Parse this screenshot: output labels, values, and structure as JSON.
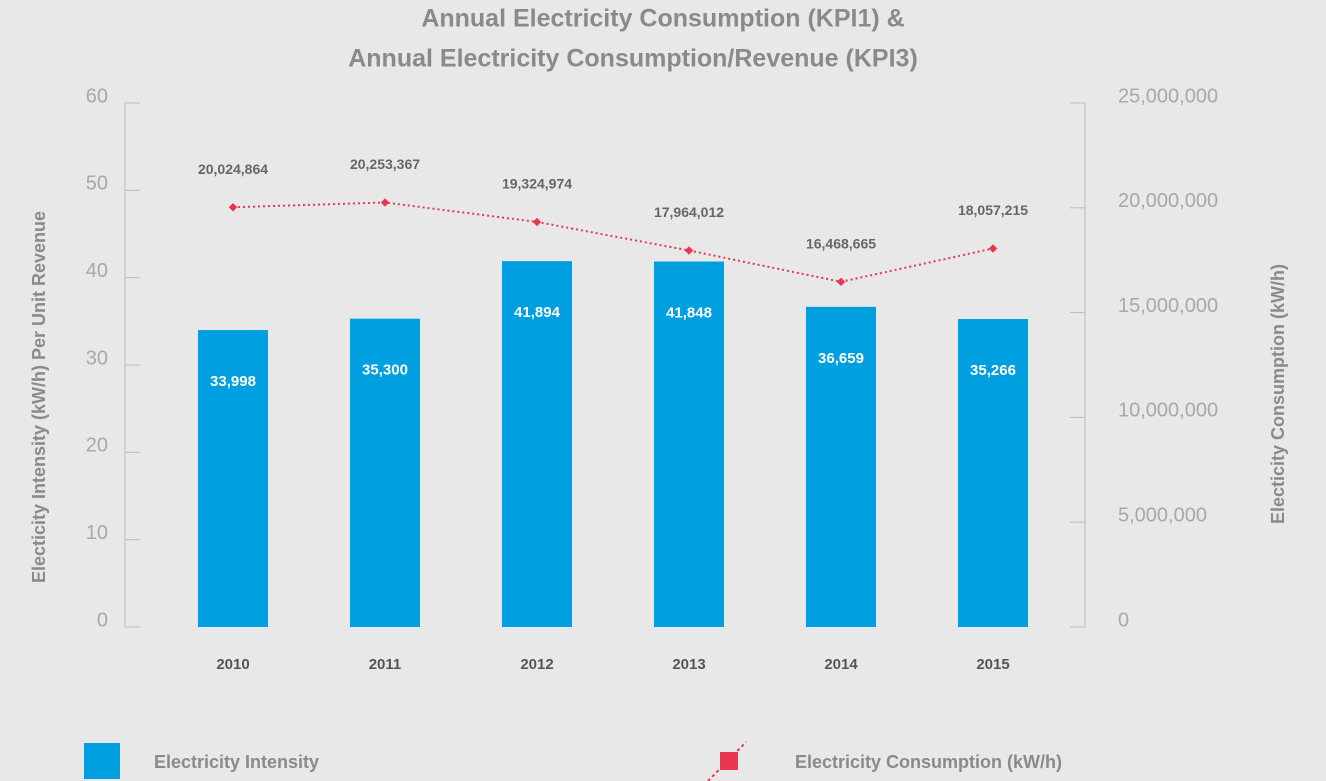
{
  "chart_data": {
    "type": "combo",
    "title": [
      "Annual Electricity Consumption (KPI1) &",
      "Annual Electricity Consumption/Revenue (KPI3)"
    ],
    "y_label": "Electicity Intensity (kW/h) Per Unit Revenue",
    "y2_label": "Electicity Consumption (kW/h)",
    "categories": [
      "2010",
      "2011",
      "2012",
      "2013",
      "2014",
      "2015"
    ],
    "ylim": [
      0,
      60
    ],
    "yticks": [
      0,
      10,
      20,
      30,
      40,
      50,
      60
    ],
    "y2lim": [
      0,
      25000000
    ],
    "y2ticks": [
      0,
      {
        "value": 5000000,
        "label": "5,000,000"
      },
      {
        "value": 10000000,
        "label": "10,000,000"
      },
      {
        "value": 15000000,
        "label": "15,000,000"
      },
      {
        "value": 20000000,
        "label": "20,000,000"
      },
      {
        "value": 25000000,
        "label": "25,000,000"
      }
    ],
    "series": [
      {
        "name": "Electricity Intensity",
        "type": "bar",
        "color": "#009fe0",
        "values": [
          33.998,
          35.3,
          41.894,
          41.848,
          36.659,
          35.266
        ],
        "value_labels": [
          "33,998",
          "35,300",
          "41,894",
          "41,848",
          "36,659",
          "35,266"
        ]
      },
      {
        "name": "Electricity Consumption (kW/h)",
        "type": "line",
        "axis": "y2",
        "color": "#e8384f",
        "values": [
          20024864,
          20253367,
          19324974,
          17964012,
          16468665,
          18057215
        ],
        "value_labels": [
          "20,024,864",
          "20,253,367",
          "19,324,974",
          "17,964,012",
          "16,468,665",
          "18,057,215"
        ]
      }
    ]
  }
}
